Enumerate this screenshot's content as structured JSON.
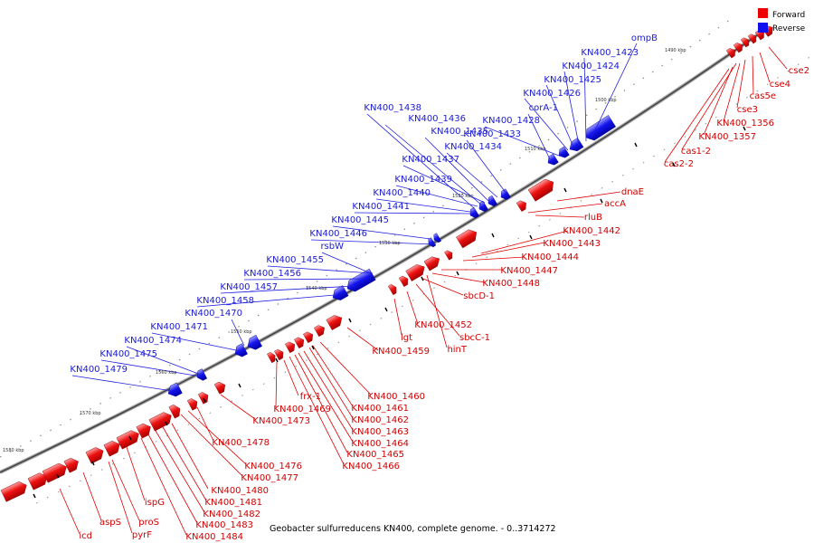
{
  "legend": {
    "forward": {
      "label": "Forward",
      "color": "#ee0000"
    },
    "reverse": {
      "label": "Reverse",
      "color": "#1010ee"
    }
  },
  "caption": "Geobacter sulfurreducens KN400, complete genome. - 0..3714272",
  "ticks": [
    "1490 kbp",
    "1500 kbp",
    "1510 kbp",
    "1520 kbp",
    "1530 kbp",
    "1540 kbp",
    "1550 kbp",
    "1560 kbp",
    "1570 kbp",
    "1580 kbp"
  ],
  "forward_labels": [
    "cse2",
    "cse4",
    "cas5e",
    "cse3",
    "KN400_1356",
    "KN400_1357",
    "cas1-2",
    "cas2-2",
    "dnaE",
    "accA",
    "rluB",
    "KN400_1442",
    "KN400_1443",
    "KN400_1444",
    "KN400_1447",
    "KN400_1448",
    "sbcD-1",
    "lgt",
    "KN400_1452",
    "sbcC-1",
    "hinT",
    "KN400_1459",
    "KN400_1460",
    "KN400_1461",
    "KN400_1462",
    "KN400_1463",
    "KN400_1464",
    "KN400_1465",
    "KN400_1466",
    "frx-1",
    "KN400_1469",
    "KN400_1473",
    "KN400_1478",
    "KN400_1476",
    "KN400_1477",
    "KN400_1480",
    "KN400_1481",
    "KN400_1482",
    "KN400_1483",
    "KN400_1484",
    "icd",
    "aspS",
    "proS",
    "ispG",
    "pyrF"
  ],
  "reverse_labels": [
    "ompB",
    "KN400_1423",
    "KN400_1424",
    "KN400_1425",
    "KN400_1426",
    "corA-1",
    "KN400_1428",
    "KN400_1433",
    "KN400_1434",
    "KN400_1435",
    "KN400_1436",
    "KN400_1438",
    "KN400_1437",
    "KN400_1439",
    "KN400_1440",
    "KN400_1441",
    "KN400_1445",
    "KN400_1446",
    "rsbW",
    "KN400_1455",
    "KN400_1456",
    "KN400_1457",
    "KN400_1458",
    "KN400_1470",
    "KN400_1471",
    "KN400_1474",
    "KN400_1475",
    "KN400_1479"
  ]
}
